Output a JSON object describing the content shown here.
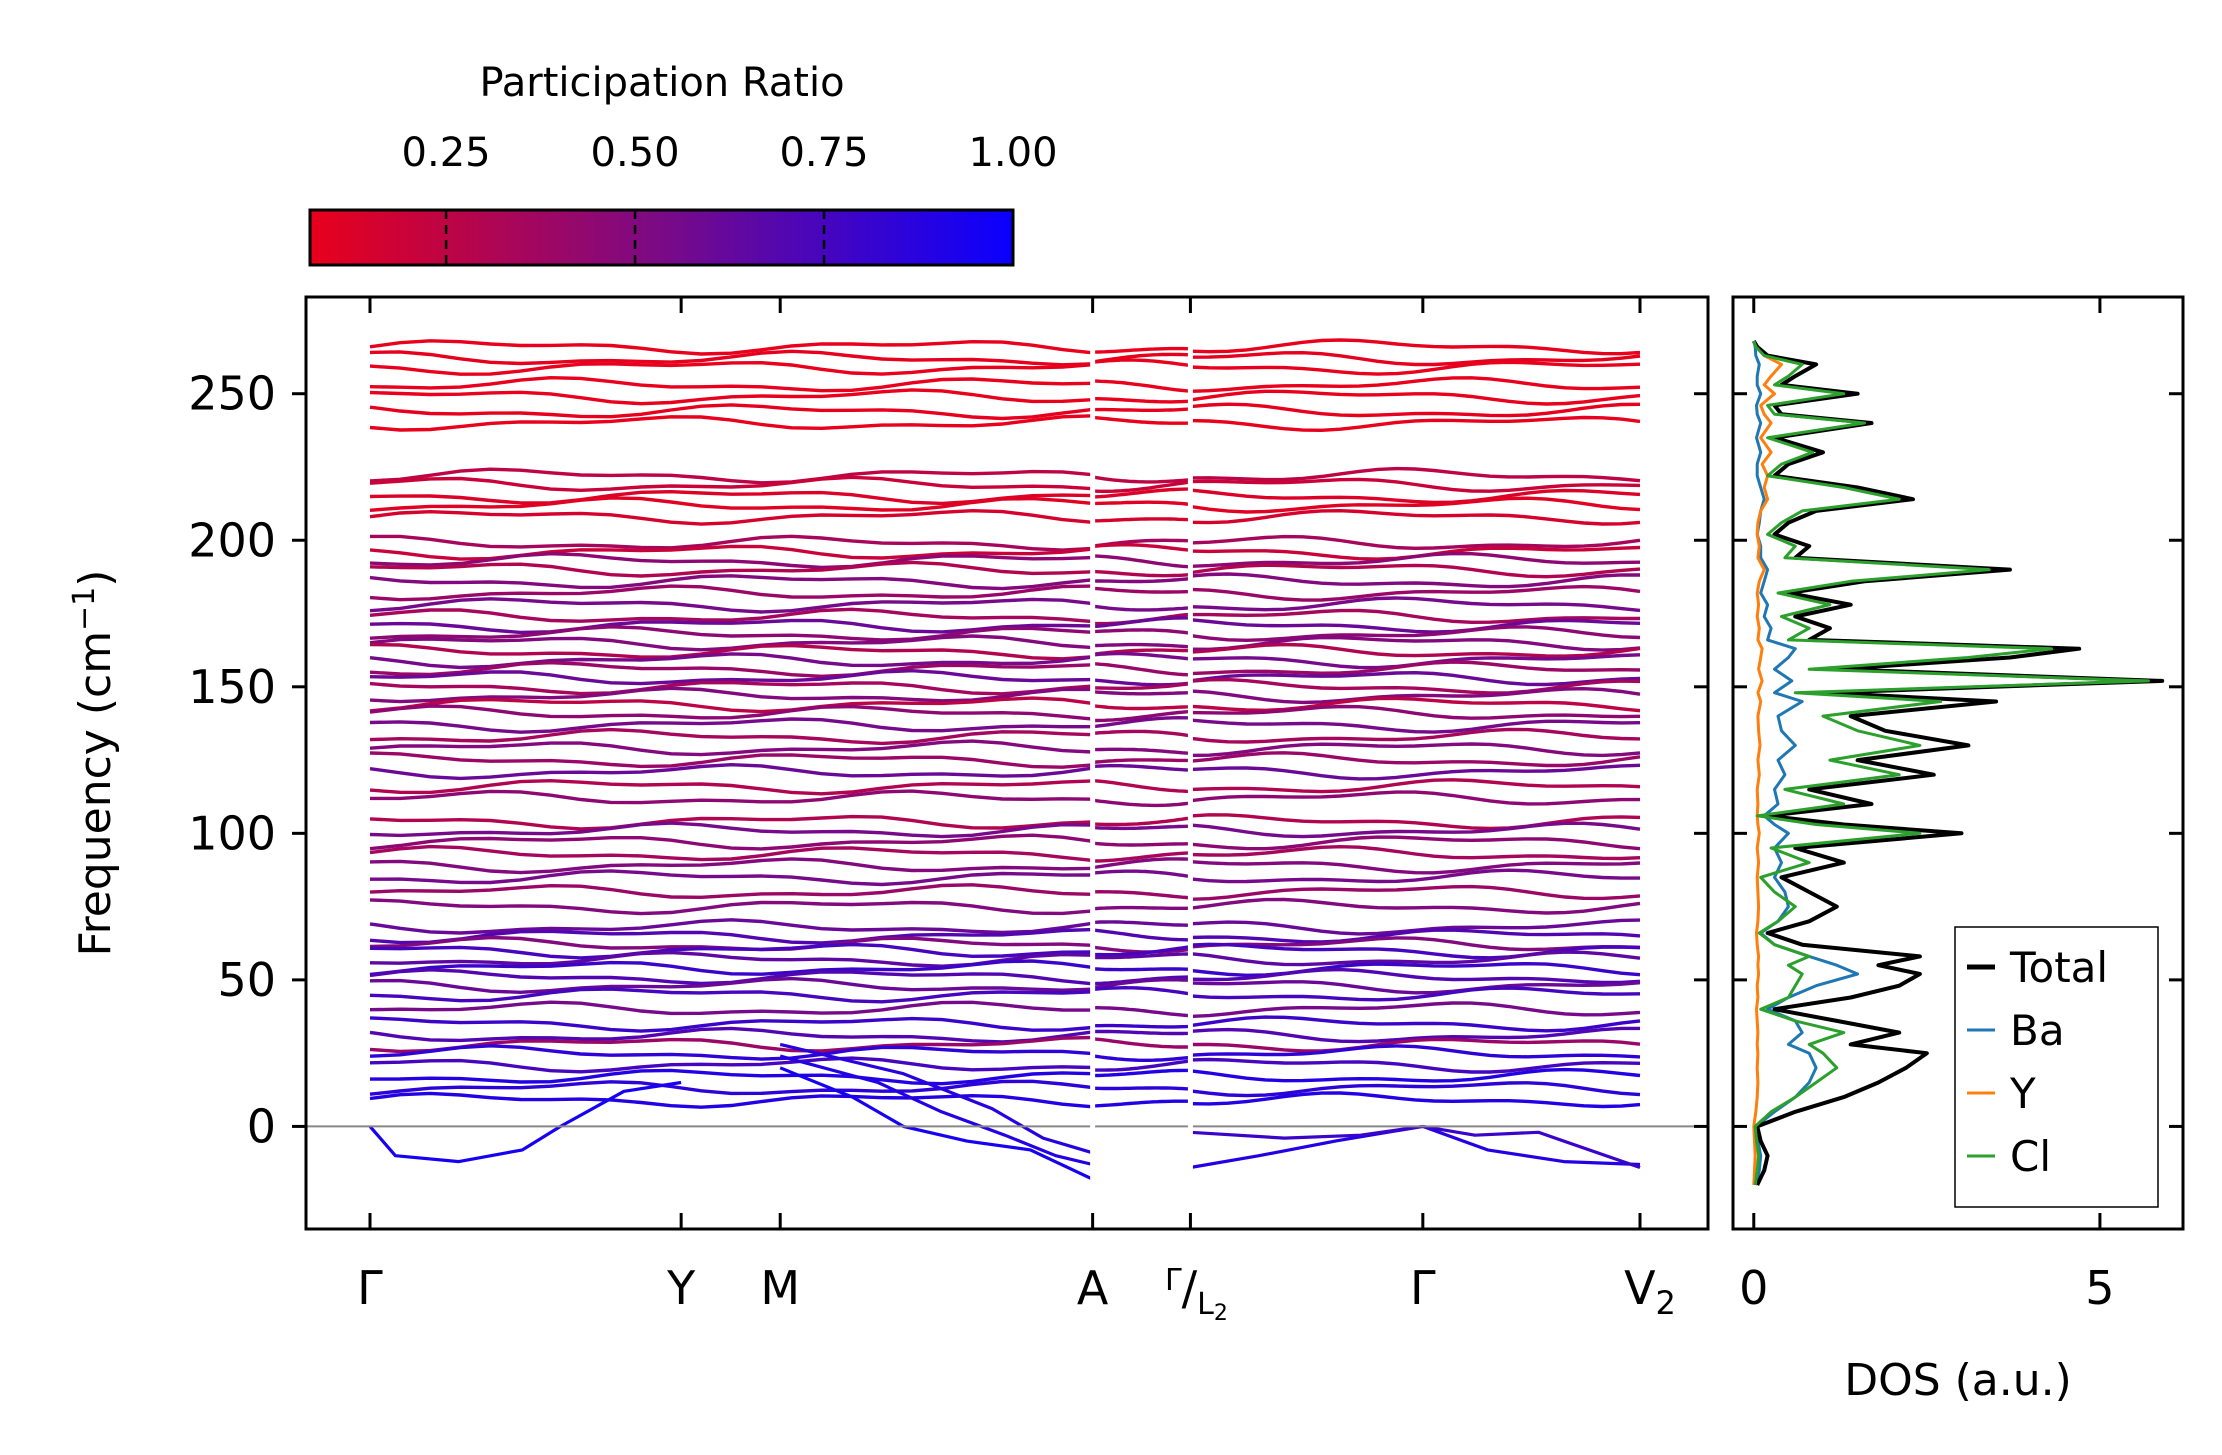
{
  "chart_data": [
    {
      "type": "line",
      "name": "phonon-band-structure",
      "title": "",
      "xlabel": "",
      "ylabel": "Frequency (cm⁻¹)",
      "ylabel_parts": {
        "base": "Frequency (cm",
        "sup": "−1",
        "close": ")"
      },
      "ylim": [
        -35,
        283
      ],
      "yticks": [
        0,
        50,
        100,
        150,
        200,
        250
      ],
      "path_labels": [
        {
          "label": "Γ",
          "pos": 0.0
        },
        {
          "label": "Y",
          "pos": 0.245
        },
        {
          "label": "M",
          "pos": 0.323
        },
        {
          "label": "A",
          "pos": 0.569
        },
        {
          "label": "Γ/L₂",
          "pos": 0.646,
          "parts": {
            "left": "Γ",
            "sep": "/",
            "right": "L",
            "sub": "2"
          }
        },
        {
          "label": "Γ",
          "pos": 0.829
        },
        {
          "label": "V₂",
          "pos": 1.0,
          "parts": {
            "base": "V",
            "sub": "2"
          }
        }
      ],
      "flat_bands": [
        {
          "f": 266,
          "pr": 0.05
        },
        {
          "f": 262,
          "pr": 0.08
        },
        {
          "f": 259,
          "pr": 0.06
        },
        {
          "f": 253,
          "pr": 0.07
        },
        {
          "f": 249,
          "pr": 0.05
        },
        {
          "f": 244,
          "pr": 0.08
        },
        {
          "f": 240,
          "pr": 0.05
        },
        {
          "f": 222,
          "pr": 0.25
        },
        {
          "f": 219,
          "pr": 0.2
        },
        {
          "f": 215,
          "pr": 0.12
        },
        {
          "f": 212,
          "pr": 0.1
        },
        {
          "f": 208,
          "pr": 0.15
        },
        {
          "f": 199,
          "pr": 0.35
        },
        {
          "f": 196,
          "pr": 0.2
        },
        {
          "f": 193,
          "pr": 0.45
        },
        {
          "f": 190,
          "pr": 0.3
        },
        {
          "f": 186,
          "pr": 0.5
        },
        {
          "f": 182,
          "pr": 0.4
        },
        {
          "f": 178,
          "pr": 0.55
        },
        {
          "f": 174,
          "pr": 0.35
        },
        {
          "f": 171,
          "pr": 0.6
        },
        {
          "f": 168,
          "pr": 0.45
        },
        {
          "f": 165,
          "pr": 0.5
        },
        {
          "f": 162,
          "pr": 0.3
        },
        {
          "f": 159,
          "pr": 0.55
        },
        {
          "f": 156,
          "pr": 0.4
        },
        {
          "f": 153,
          "pr": 0.6
        },
        {
          "f": 150,
          "pr": 0.35
        },
        {
          "f": 147,
          "pr": 0.5
        },
        {
          "f": 144,
          "pr": 0.25
        },
        {
          "f": 141,
          "pr": 0.45
        },
        {
          "f": 137,
          "pr": 0.55
        },
        {
          "f": 133,
          "pr": 0.35
        },
        {
          "f": 129,
          "pr": 0.5
        },
        {
          "f": 125,
          "pr": 0.4
        },
        {
          "f": 121,
          "pr": 0.6
        },
        {
          "f": 116,
          "pr": 0.3
        },
        {
          "f": 112,
          "pr": 0.45
        },
        {
          "f": 104,
          "pr": 0.3
        },
        {
          "f": 101,
          "pr": 0.55
        },
        {
          "f": 97,
          "pr": 0.45
        },
        {
          "f": 93,
          "pr": 0.35
        },
        {
          "f": 89,
          "pr": 0.5
        },
        {
          "f": 85,
          "pr": 0.55
        },
        {
          "f": 80,
          "pr": 0.4
        },
        {
          "f": 75,
          "pr": 0.5
        },
        {
          "f": 68,
          "pr": 0.6
        },
        {
          "f": 65,
          "pr": 0.7
        },
        {
          "f": 62,
          "pr": 0.5
        },
        {
          "f": 60,
          "pr": 0.75
        },
        {
          "f": 57,
          "pr": 0.65
        },
        {
          "f": 54,
          "pr": 0.8
        },
        {
          "f": 51,
          "pr": 0.7
        },
        {
          "f": 48,
          "pr": 0.6
        },
        {
          "f": 45,
          "pr": 0.75
        },
        {
          "f": 40,
          "pr": 0.55
        },
        {
          "f": 35,
          "pr": 0.8
        },
        {
          "f": 31,
          "pr": 0.7
        },
        {
          "f": 28,
          "pr": 0.4
        },
        {
          "f": 25,
          "pr": 0.85
        },
        {
          "f": 21,
          "pr": 0.75
        },
        {
          "f": 17,
          "pr": 0.9
        },
        {
          "f": 13,
          "pr": 0.85
        },
        {
          "f": 9,
          "pr": 0.9
        }
      ],
      "acoustic_bands": [
        {
          "name": "acoustic-dip-gamma-y",
          "pr": 0.95,
          "pts": [
            [
              0.0,
              0
            ],
            [
              0.02,
              -10
            ],
            [
              0.07,
              -12
            ],
            [
              0.12,
              -8
            ],
            [
              0.15,
              0
            ],
            [
              0.2,
              12
            ],
            [
              0.245,
              15
            ]
          ]
        },
        {
          "name": "acoustic-dip-m-a-1",
          "pr": 0.95,
          "pts": [
            [
              0.323,
              20
            ],
            [
              0.38,
              10
            ],
            [
              0.42,
              0
            ],
            [
              0.47,
              -5
            ],
            [
              0.52,
              -8
            ],
            [
              0.569,
              -18
            ]
          ]
        },
        {
          "name": "acoustic-dip-m-a-2",
          "pr": 0.9,
          "pts": [
            [
              0.323,
              24
            ],
            [
              0.4,
              15
            ],
            [
              0.45,
              5
            ],
            [
              0.5,
              -3
            ],
            [
              0.54,
              -10
            ],
            [
              0.569,
              -13
            ]
          ]
        },
        {
          "name": "acoustic-dip-m-a-3",
          "pr": 0.88,
          "pts": [
            [
              0.323,
              28
            ],
            [
              0.42,
              18
            ],
            [
              0.49,
              6
            ],
            [
              0.53,
              -4
            ],
            [
              0.569,
              -9
            ]
          ]
        },
        {
          "name": "acoustic-rise-l2-gamma-1",
          "pr": 0.9,
          "pts": [
            [
              0.646,
              -14
            ],
            [
              0.7,
              -10
            ],
            [
              0.76,
              -5
            ],
            [
              0.829,
              0
            ]
          ]
        },
        {
          "name": "acoustic-rise-l2-gamma-2",
          "pr": 0.8,
          "pts": [
            [
              0.646,
              -2
            ],
            [
              0.72,
              -4
            ],
            [
              0.78,
              -3
            ],
            [
              0.829,
              0
            ]
          ]
        },
        {
          "name": "acoustic-fall-gamma-v2-1",
          "pr": 0.9,
          "pts": [
            [
              0.829,
              0
            ],
            [
              0.88,
              -8
            ],
            [
              0.94,
              -12
            ],
            [
              1.0,
              -13
            ]
          ]
        },
        {
          "name": "acoustic-fall-gamma-v2-2",
          "pr": 0.8,
          "pts": [
            [
              0.829,
              0
            ],
            [
              0.87,
              -3
            ],
            [
              0.92,
              -2
            ],
            [
              1.0,
              -14
            ]
          ]
        }
      ],
      "colorbar": {
        "title": "Participation Ratio",
        "range": [
          0.07,
          1.0
        ],
        "ticks": [
          0.25,
          0.5,
          0.75,
          1.0
        ],
        "tick_labels": [
          "0.25",
          "0.50",
          "0.75",
          "1.00"
        ],
        "color_low": "#e8001c",
        "color_mid": "#7a0a86",
        "color_high": "#0a00ff"
      }
    },
    {
      "type": "line",
      "name": "density-of-states",
      "xlabel": "DOS (a.u.)",
      "ylabel": "",
      "xlim": [
        -0.3,
        6.2
      ],
      "ylim": [
        -35,
        283
      ],
      "xticks": [
        0,
        5
      ],
      "xtick_labels": [
        "0",
        "5"
      ],
      "series": [
        {
          "name": "Total",
          "color": "#000000",
          "freq": [
            -20,
            -15,
            -10,
            -5,
            0,
            5,
            10,
            15,
            20,
            25,
            28,
            32,
            36,
            40,
            44,
            48,
            52,
            55,
            58,
            62,
            66,
            70,
            75,
            80,
            85,
            90,
            95,
            100,
            103,
            106,
            110,
            115,
            120,
            125,
            130,
            135,
            140,
            145,
            148,
            152,
            156,
            160,
            163,
            166,
            170,
            174,
            178,
            182,
            186,
            190,
            194,
            198,
            202,
            206,
            210,
            214,
            218,
            222,
            226,
            230,
            235,
            240,
            243,
            246,
            250,
            253,
            256,
            260,
            263,
            266,
            268
          ],
          "dos": [
            0.05,
            0.15,
            0.2,
            0.1,
            0.05,
            0.6,
            1.3,
            1.8,
            2.2,
            2.5,
            1.4,
            2.1,
            1.2,
            0.3,
            1.4,
            2.1,
            2.4,
            1.8,
            2.4,
            0.7,
            0.2,
            0.8,
            1.2,
            0.8,
            0.4,
            1.3,
            0.6,
            3.0,
            1.3,
            0.2,
            1.7,
            0.8,
            2.6,
            1.5,
            3.1,
            1.9,
            1.4,
            3.5,
            1.0,
            5.9,
            1.2,
            3.7,
            4.7,
            0.8,
            1.1,
            0.6,
            1.4,
            0.5,
            1.6,
            3.7,
            0.6,
            0.8,
            0.3,
            0.5,
            0.9,
            2.3,
            1.5,
            0.3,
            0.5,
            1.0,
            0.3,
            1.7,
            0.4,
            0.3,
            1.5,
            0.4,
            0.6,
            0.9,
            0.2,
            0.05,
            0.0
          ]
        },
        {
          "name": "Ba",
          "color": "#1f77b4",
          "freq": [
            -20,
            -15,
            -10,
            -5,
            0,
            5,
            10,
            15,
            20,
            25,
            28,
            32,
            36,
            40,
            44,
            48,
            52,
            55,
            58,
            62,
            66,
            70,
            75,
            80,
            85,
            90,
            95,
            100,
            103,
            106,
            110,
            115,
            120,
            125,
            130,
            135,
            140,
            145,
            148,
            152,
            156,
            160,
            163,
            166,
            170,
            174,
            178,
            182,
            186,
            190,
            194,
            198,
            202,
            206,
            210,
            214,
            218,
            222,
            226,
            230,
            235,
            240,
            243,
            246,
            250,
            253,
            256,
            260,
            263,
            266,
            268
          ],
          "dos": [
            0.03,
            0.08,
            0.1,
            0.06,
            0.03,
            0.3,
            0.6,
            0.8,
            0.9,
            0.8,
            0.5,
            0.7,
            0.6,
            0.2,
            0.5,
            0.9,
            1.5,
            1.2,
            0.8,
            0.3,
            0.1,
            0.35,
            0.5,
            0.45,
            0.3,
            0.4,
            0.3,
            0.5,
            0.3,
            0.15,
            0.35,
            0.3,
            0.45,
            0.35,
            0.6,
            0.4,
            0.35,
            0.7,
            0.3,
            0.55,
            0.3,
            0.5,
            0.6,
            0.2,
            0.25,
            0.15,
            0.2,
            0.1,
            0.15,
            0.2,
            0.1,
            0.1,
            0.05,
            0.08,
            0.1,
            0.15,
            0.1,
            0.05,
            0.05,
            0.1,
            0.04,
            0.1,
            0.05,
            0.04,
            0.1,
            0.05,
            0.05,
            0.08,
            0.03,
            0.02,
            0.0
          ]
        },
        {
          "name": "Y",
          "color": "#ff7f0e",
          "freq": [
            -20,
            -15,
            -10,
            -5,
            0,
            5,
            10,
            15,
            20,
            25,
            28,
            32,
            36,
            40,
            44,
            48,
            52,
            55,
            58,
            62,
            66,
            70,
            75,
            80,
            85,
            90,
            95,
            100,
            103,
            106,
            110,
            115,
            120,
            125,
            130,
            135,
            140,
            145,
            148,
            152,
            156,
            160,
            163,
            166,
            170,
            174,
            178,
            182,
            186,
            190,
            194,
            198,
            202,
            206,
            210,
            214,
            218,
            222,
            226,
            230,
            235,
            240,
            243,
            246,
            250,
            253,
            256,
            260,
            263,
            266,
            268
          ],
          "dos": [
            0.0,
            0.01,
            0.02,
            0.01,
            0.0,
            0.03,
            0.05,
            0.06,
            0.05,
            0.06,
            0.05,
            0.06,
            0.05,
            0.04,
            0.06,
            0.05,
            0.07,
            0.06,
            0.07,
            0.05,
            0.04,
            0.06,
            0.07,
            0.06,
            0.05,
            0.07,
            0.05,
            0.08,
            0.06,
            0.05,
            0.06,
            0.05,
            0.08,
            0.06,
            0.09,
            0.07,
            0.06,
            0.1,
            0.06,
            0.12,
            0.07,
            0.1,
            0.12,
            0.06,
            0.08,
            0.05,
            0.07,
            0.05,
            0.08,
            0.15,
            0.06,
            0.08,
            0.05,
            0.06,
            0.1,
            0.2,
            0.15,
            0.2,
            0.12,
            0.25,
            0.1,
            0.25,
            0.15,
            0.1,
            0.3,
            0.15,
            0.25,
            0.4,
            0.15,
            0.05,
            0.0
          ]
        },
        {
          "name": "Cl",
          "color": "#2ca02c",
          "freq": [
            -20,
            -15,
            -10,
            -5,
            0,
            5,
            10,
            15,
            20,
            25,
            28,
            32,
            36,
            40,
            44,
            48,
            52,
            55,
            58,
            62,
            66,
            70,
            75,
            80,
            85,
            90,
            95,
            100,
            103,
            106,
            110,
            115,
            120,
            125,
            130,
            135,
            140,
            145,
            148,
            152,
            156,
            160,
            163,
            166,
            170,
            174,
            178,
            182,
            186,
            190,
            194,
            198,
            202,
            206,
            210,
            214,
            218,
            222,
            226,
            230,
            235,
            240,
            243,
            246,
            250,
            253,
            256,
            260,
            263,
            266,
            268
          ],
          "dos": [
            0.02,
            0.05,
            0.07,
            0.04,
            0.02,
            0.25,
            0.6,
            0.9,
            1.2,
            1.0,
            0.8,
            1.3,
            0.6,
            0.1,
            0.5,
            0.6,
            0.7,
            0.5,
            0.8,
            0.3,
            0.08,
            0.35,
            0.6,
            0.3,
            0.1,
            0.8,
            0.25,
            2.4,
            0.9,
            0.05,
            1.3,
            0.45,
            2.1,
            1.1,
            2.4,
            1.5,
            1.0,
            2.7,
            0.6,
            5.7,
            0.8,
            3.1,
            4.3,
            0.5,
            0.8,
            0.4,
            1.1,
            0.35,
            1.4,
            3.4,
            0.45,
            0.6,
            0.2,
            0.4,
            0.7,
            2.1,
            1.3,
            0.2,
            0.4,
            0.85,
            0.2,
            1.6,
            0.3,
            0.2,
            1.3,
            0.3,
            0.5,
            0.7,
            0.15,
            0.03,
            0.0
          ]
        }
      ],
      "legend": {
        "placement": "bottom-right",
        "entries": [
          "Total",
          "Ba",
          "Y",
          "Cl"
        ]
      }
    }
  ]
}
